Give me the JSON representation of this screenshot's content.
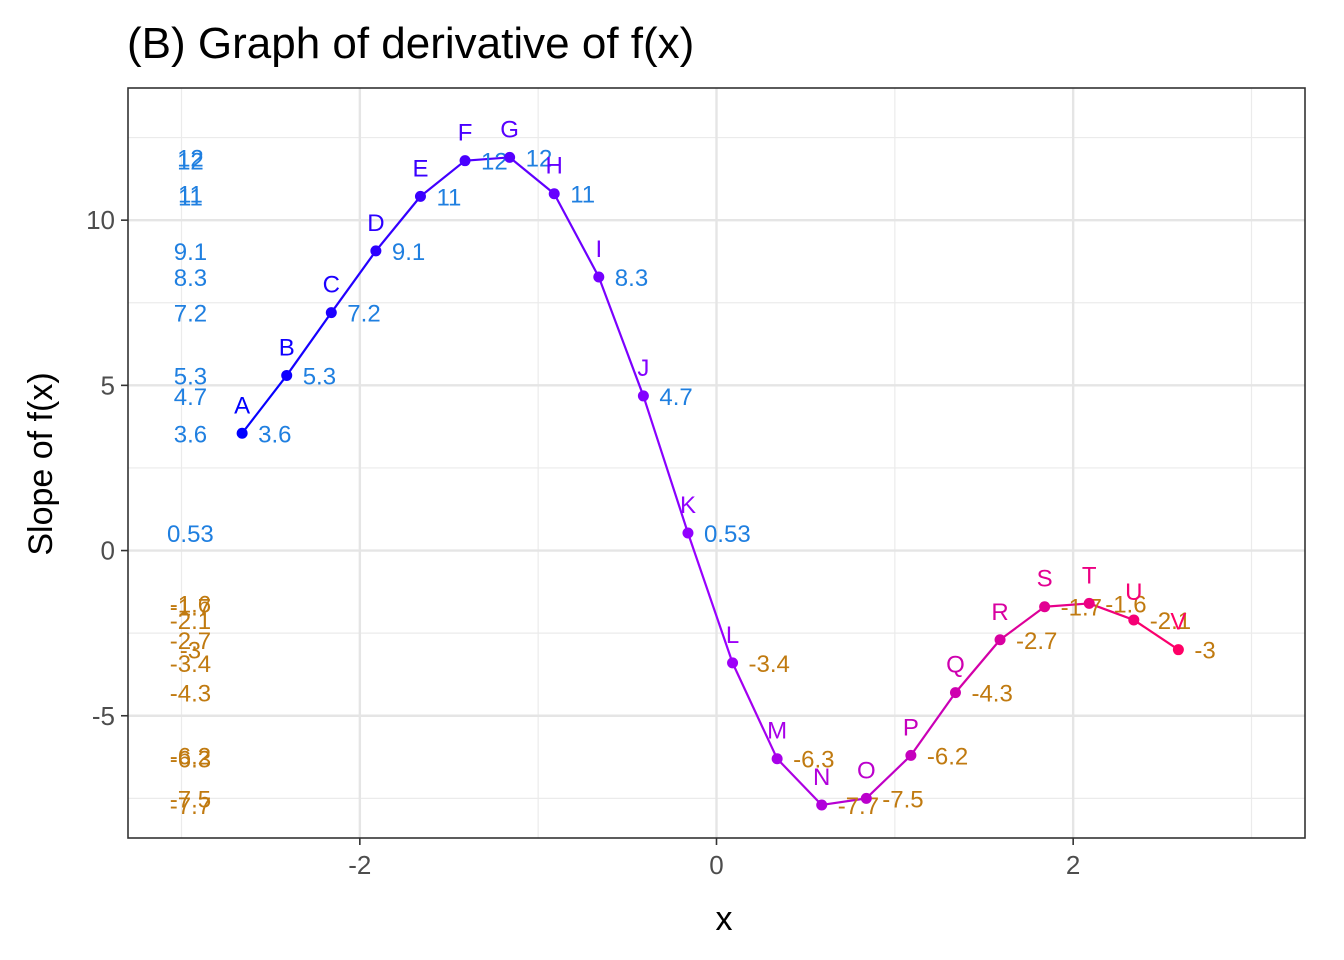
{
  "chart_data": {
    "type": "line",
    "title": "(B) Graph of derivative of f(x)",
    "xlabel": "x",
    "ylabel": "Slope of f(x)",
    "xlim": [
      -3.3,
      3.3
    ],
    "ylim": [
      -8.7,
      14
    ],
    "x_ticks": [
      -2,
      0,
      2
    ],
    "y_ticks": [
      -5,
      0,
      5,
      10
    ],
    "x_tick_labels": [
      "-2",
      "0",
      "2"
    ],
    "y_tick_labels": [
      "-5",
      "0",
      "5",
      "10"
    ],
    "grid": true,
    "legend": "none",
    "colors": {
      "line_start": "#0000ff",
      "line_mid": "#9900ff",
      "line_end": "#ff0066",
      "positive_value": "#1f7fe0",
      "negative_value": "#c07a10"
    },
    "points": [
      {
        "label": "A",
        "x": -2.66,
        "y": 3.55,
        "value": "3.6"
      },
      {
        "label": "B",
        "x": -2.41,
        "y": 5.3,
        "value": "5.3"
      },
      {
        "label": "C",
        "x": -2.16,
        "y": 7.2,
        "value": "7.2"
      },
      {
        "label": "D",
        "x": -1.91,
        "y": 9.07,
        "value": "9.1"
      },
      {
        "label": "E",
        "x": -1.66,
        "y": 10.72,
        "value": "11"
      },
      {
        "label": "F",
        "x": -1.41,
        "y": 11.8,
        "value": "12"
      },
      {
        "label": "G",
        "x": -1.16,
        "y": 11.9,
        "value": "12"
      },
      {
        "label": "H",
        "x": -0.91,
        "y": 10.8,
        "value": "11"
      },
      {
        "label": "I",
        "x": -0.66,
        "y": 8.28,
        "value": "8.3"
      },
      {
        "label": "J",
        "x": -0.41,
        "y": 4.68,
        "value": "4.7"
      },
      {
        "label": "K",
        "x": -0.16,
        "y": 0.53,
        "value": "0.53"
      },
      {
        "label": "L",
        "x": 0.09,
        "y": -3.4,
        "value": "-3.4"
      },
      {
        "label": "M",
        "x": 0.34,
        "y": -6.3,
        "value": "-6.3"
      },
      {
        "label": "N",
        "x": 0.59,
        "y": -7.7,
        "value": "-7.7"
      },
      {
        "label": "O",
        "x": 0.84,
        "y": -7.5,
        "value": "-7.5"
      },
      {
        "label": "P",
        "x": 1.09,
        "y": -6.2,
        "value": "-6.2"
      },
      {
        "label": "Q",
        "x": 1.34,
        "y": -4.3,
        "value": "-4.3"
      },
      {
        "label": "R",
        "x": 1.59,
        "y": -2.7,
        "value": "-2.7"
      },
      {
        "label": "S",
        "x": 1.84,
        "y": -1.7,
        "value": "-1.7"
      },
      {
        "label": "T",
        "x": 2.09,
        "y": -1.6,
        "value": "-1.6"
      },
      {
        "label": "U",
        "x": 2.34,
        "y": -2.1,
        "value": "-2.1"
      },
      {
        "label": "V",
        "x": 2.59,
        "y": -3.0,
        "value": "-3"
      }
    ]
  }
}
